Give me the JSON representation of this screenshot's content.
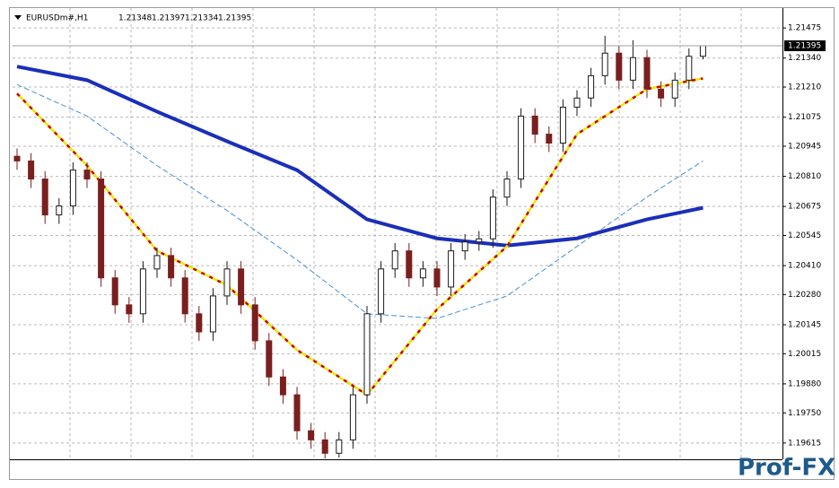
{
  "chart_data": {
    "type": "candlestick",
    "title": "EURUSDm#,H1",
    "ylim": [
      1.19542,
      1.21564
    ],
    "yticks": [
      1.21475,
      {
        "value": 1.2134,
        "label": "1.21340"
      },
      {
        "value": 1.2121,
        "label": "1.21210"
      },
      1.21075,
      1.20945,
      {
        "value": 1.2081,
        "label": "1.20810"
      },
      1.20675,
      1.20545,
      {
        "value": 1.2041,
        "label": "1.20410"
      },
      {
        "value": 1.2028,
        "label": "1.20280"
      },
      1.20145,
      1.20015,
      {
        "value": 1.1988,
        "label": "1.19880"
      },
      {
        "value": 1.1975,
        "label": "1.19750"
      },
      1.19615
    ],
    "grid": true,
    "up_color": "#1a1a1a",
    "down_color": "#7a1f1f",
    "open": [
      1.209,
      1.20879,
      1.20798,
      1.20637,
      1.20677,
      1.20838,
      1.20798,
      1.20355,
      1.20234,
      1.20194,
      1.20395,
      1.20455,
      1.20355,
      1.20194,
      1.20113,
      1.20274,
      1.20395,
      1.20234,
      1.20073,
      1.19911,
      1.19831,
      1.1967,
      1.19629,
      1.19569,
      1.19629,
      1.19831,
      1.20194,
      1.20395,
      1.20476,
      1.20355,
      1.20395,
      1.20314,
      1.20476,
      1.20516,
      1.2053,
      1.20717,
      1.20798,
      1.2108,
      1.20999,
      1.20959,
      1.2112,
      1.21161,
      1.21261,
      1.21362,
      1.21241,
      1.21342,
      1.21201,
      1.21161,
      1.21241,
      1.21348
    ],
    "high": [
      1.20935,
      1.20914,
      1.20833,
      1.20712,
      1.20873,
      1.20873,
      1.20833,
      1.2039,
      1.20269,
      1.2043,
      1.2049,
      1.2049,
      1.2039,
      1.20229,
      1.20309,
      1.2043,
      1.2043,
      1.20269,
      1.20108,
      1.19946,
      1.19866,
      1.19705,
      1.19664,
      1.19664,
      1.19866,
      1.20229,
      1.2043,
      1.20511,
      1.20511,
      1.2043,
      1.2043,
      1.20511,
      1.20551,
      1.20565,
      1.20752,
      1.20833,
      1.21115,
      1.21115,
      1.21034,
      1.21155,
      1.21196,
      1.21296,
      1.2144,
      1.21397,
      1.2142,
      1.21377,
      1.21236,
      1.21276,
      1.21383,
      1.21397
    ],
    "low": [
      1.20839,
      1.20758,
      1.20597,
      1.20597,
      1.20637,
      1.20758,
      1.20315,
      1.20194,
      1.20154,
      1.20154,
      1.20355,
      1.20315,
      1.20154,
      1.20073,
      1.20073,
      1.20234,
      1.20194,
      1.20033,
      1.19871,
      1.19791,
      1.1963,
      1.19589,
      1.19545,
      1.1955,
      1.19589,
      1.19791,
      1.20154,
      1.20355,
      1.20315,
      1.20315,
      1.20274,
      1.20274,
      1.20436,
      1.20476,
      1.2049,
      1.20677,
      1.20758,
      1.20959,
      1.20919,
      1.20919,
      1.2108,
      1.21121,
      1.21221,
      1.21201,
      1.21201,
      1.21161,
      1.21121,
      1.21121,
      1.21201,
      1.21334
    ],
    "close": [
      1.20879,
      1.20798,
      1.20637,
      1.20677,
      1.20838,
      1.20798,
      1.20355,
      1.20234,
      1.20194,
      1.20395,
      1.20455,
      1.20355,
      1.20194,
      1.20113,
      1.20274,
      1.20395,
      1.20234,
      1.20073,
      1.19911,
      1.19831,
      1.1967,
      1.19629,
      1.19569,
      1.19629,
      1.19831,
      1.20194,
      1.20395,
      1.20476,
      1.20355,
      1.20395,
      1.20314,
      1.20476,
      1.20516,
      1.2053,
      1.20717,
      1.20798,
      1.2108,
      1.20999,
      1.20959,
      1.2112,
      1.21161,
      1.21261,
      1.21362,
      1.21241,
      1.21342,
      1.21201,
      1.21161,
      1.21241,
      1.21348,
      1.21395
    ],
    "lines": [
      {
        "color": "#4a8fd0",
        "width": 1,
        "x": [
          0,
          5,
          10,
          15,
          20,
          25,
          30,
          35,
          40,
          45,
          49
        ],
        "values": [
          1.21221,
          1.2108,
          1.20858,
          1.20657,
          1.20435,
          1.20194,
          1.20173,
          1.20274,
          1.20496,
          1.20717,
          1.20879
        ]
      },
      {
        "color": "#1a2fb8",
        "width": 4,
        "x": [
          0,
          5,
          10,
          15,
          20,
          25,
          30,
          35,
          40,
          45,
          49
        ],
        "values": [
          1.21302,
          1.21241,
          1.211,
          1.20967,
          1.20838,
          1.20617,
          1.20532,
          1.205,
          1.20532,
          1.20617,
          1.20669
        ]
      },
      {
        "color": "#e8e800",
        "dash_color": "#cc0000",
        "width": 2.5,
        "x": [
          0,
          5,
          10,
          15,
          20,
          25,
          30,
          35,
          40,
          45,
          49
        ],
        "values": [
          1.21181,
          1.20858,
          1.20476,
          1.20322,
          1.20032,
          1.19831,
          1.20214,
          1.20496,
          1.20999,
          1.21201,
          1.21249
        ]
      }
    ]
  },
  "watermark": "Prof-FX"
}
